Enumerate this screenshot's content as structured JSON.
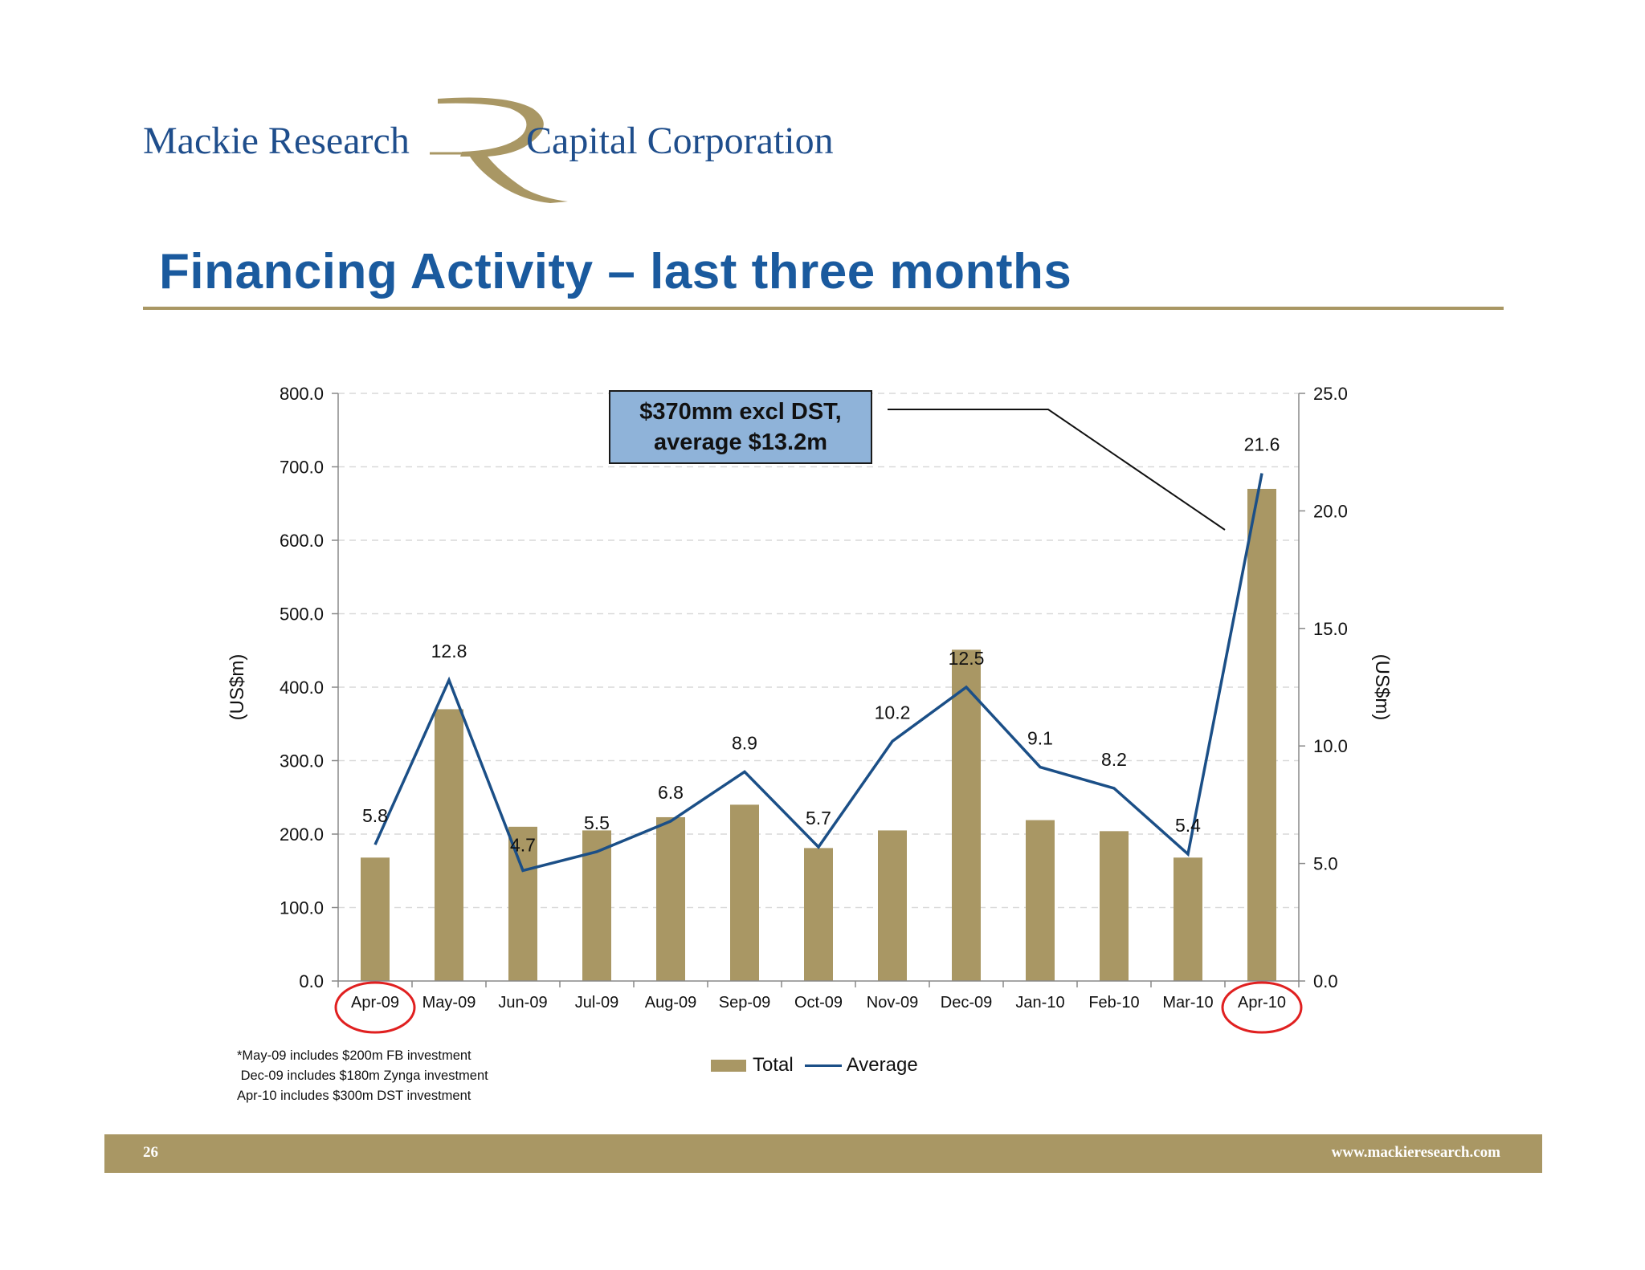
{
  "header": {
    "logo_left": "Mackie Research",
    "logo_right": "Capital Corporation",
    "title": "Financing Activity – last three months"
  },
  "annotation": {
    "line1": "$370mm excl DST,",
    "line2": "average $13.2m"
  },
  "footnotes": [
    "*May-09 includes $200m FB investment",
    " Dec-09 includes $180m Zynga investment",
    "Apr-10 includes $300m DST investment"
  ],
  "footer": {
    "page": "26",
    "url": "www.mackieresearch.com"
  },
  "colors": {
    "bar": "#a99764",
    "line": "#1b4f87",
    "title": "#1a5a9e",
    "highlight_circle": "#e02020"
  },
  "chart_data": {
    "type": "bar",
    "categories": [
      "Apr-09",
      "May-09",
      "Jun-09",
      "Jul-09",
      "Aug-09",
      "Sep-09",
      "Oct-09",
      "Nov-09",
      "Dec-09",
      "Jan-10",
      "Feb-10",
      "Mar-10",
      "Apr-10"
    ],
    "series": [
      {
        "name": "Total",
        "type": "bar",
        "axis": "left",
        "values": [
          168,
          370,
          210,
          205,
          223,
          240,
          181,
          205,
          451,
          219,
          204,
          168,
          670
        ]
      },
      {
        "name": "Average",
        "type": "line",
        "axis": "right",
        "values": [
          5.8,
          12.8,
          4.7,
          5.5,
          6.8,
          8.9,
          5.7,
          10.2,
          12.5,
          9.1,
          8.2,
          5.4,
          21.6
        ],
        "labels": [
          "5.8",
          "12.8",
          "4.7",
          "5.5",
          "6.8",
          "8.9",
          "5.7",
          "10.2",
          "12.5",
          "9.1",
          "8.2",
          "5.4",
          "21.6"
        ]
      }
    ],
    "ylabel_left": "(US$m)",
    "ylabel_right": "(US$m)",
    "ylim_left": [
      0,
      800
    ],
    "ylim_right": [
      0,
      25
    ],
    "yticks_left": [
      "0.0",
      "100.0",
      "200.0",
      "300.0",
      "400.0",
      "500.0",
      "600.0",
      "700.0",
      "800.0"
    ],
    "yticks_right": [
      "0.0",
      "5.0",
      "10.0",
      "15.0",
      "20.0",
      "25.0"
    ],
    "highlighted_categories": [
      "Apr-09",
      "Apr-10"
    ],
    "grid": "dashed horizontal",
    "legend_position": "bottom"
  }
}
